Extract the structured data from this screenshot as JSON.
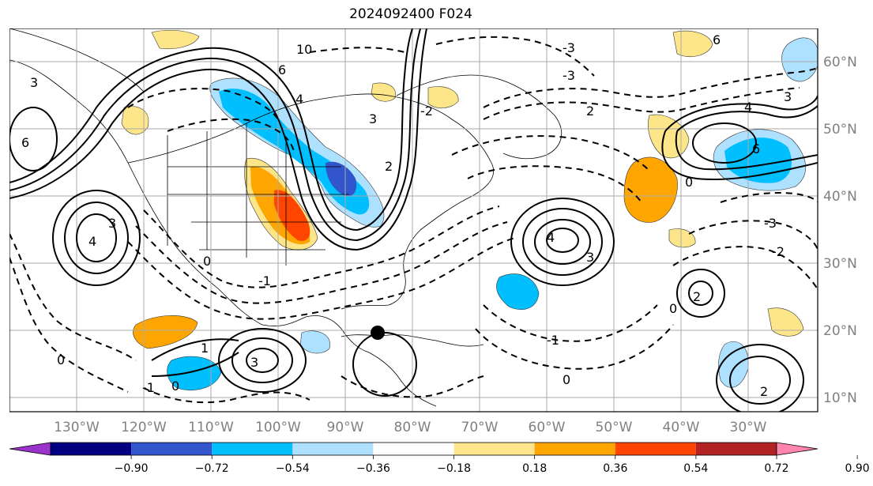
{
  "title": "2024092400 F024",
  "axes": {
    "lon_labels": [
      "130°W",
      "120°W",
      "110°W",
      "100°W",
      "90°W",
      "80°W",
      "70°W",
      "60°W",
      "50°W",
      "40°W",
      "30°W"
    ],
    "lat_labels": [
      "60°N",
      "50°N",
      "40°N",
      "30°N",
      "20°N",
      "10°N"
    ]
  },
  "colorbar": {
    "ticks": [
      "−0.90",
      "−0.72",
      "−0.54",
      "−0.36",
      "−0.18",
      "0.18",
      "0.36",
      "0.54",
      "0.72",
      "0.90"
    ],
    "colors": [
      "#9933cc",
      "#000080",
      "#3355cc",
      "#00bfff",
      "#aee0ff",
      "#ffffff",
      "#fde68a",
      "#ffa500",
      "#ff4500",
      "#b22222",
      "#ff85b0"
    ]
  },
  "contour_labels": {
    "ten": "10",
    "six": "6",
    "four": "4",
    "three": "3",
    "two": "2",
    "one": "1",
    "zero": "0",
    "neg_one": "-1",
    "neg_two": "-2",
    "neg_three": "-3"
  },
  "marker": {
    "symbol": "black-dot"
  }
}
